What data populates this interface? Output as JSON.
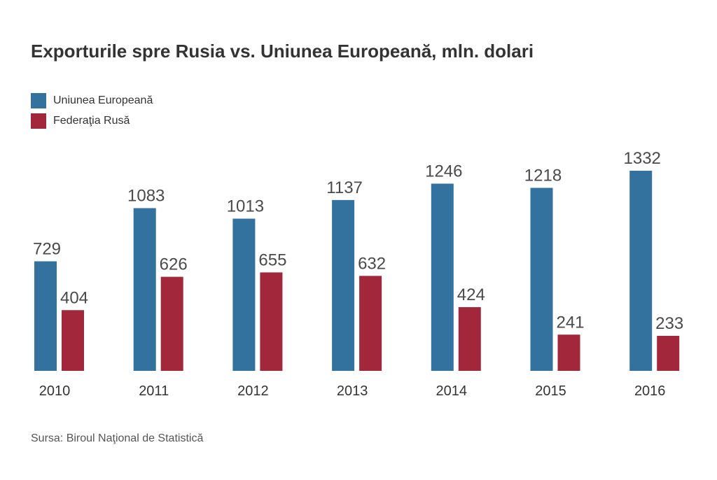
{
  "chart_data": {
    "type": "bar",
    "title": "Exporturile spre Rusia vs. Uniunea Europeană, mln. dolari",
    "categories": [
      "2010",
      "2011",
      "2012",
      "2013",
      "2014",
      "2015",
      "2016"
    ],
    "series": [
      {
        "name": "Uniunea Europeană",
        "color": "#33729f",
        "values": [
          729,
          1083,
          1013,
          1137,
          1246,
          1218,
          1332
        ]
      },
      {
        "name": "Federaţia Rusă",
        "color": "#a2273a",
        "values": [
          404,
          626,
          655,
          632,
          424,
          241,
          233
        ]
      }
    ],
    "xlabel": "",
    "ylabel": "",
    "ylim": [
      0,
      1332
    ],
    "grid": false,
    "legend_position": "top-left",
    "data_labels": true
  },
  "footer": {
    "source": "Sursa: Biroul Naţional de Statistică"
  }
}
